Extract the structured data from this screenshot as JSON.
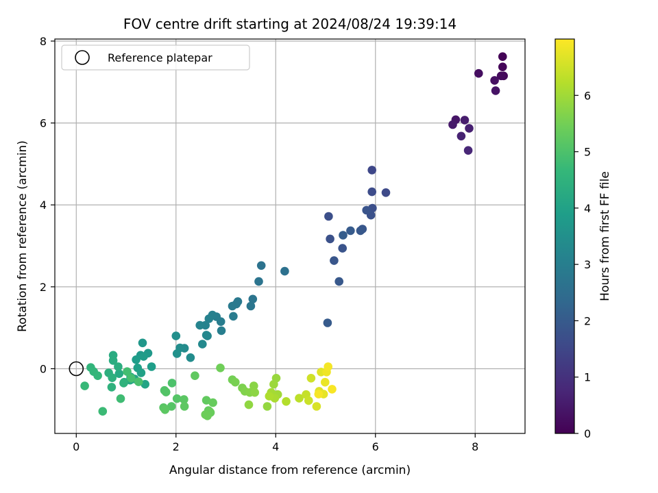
{
  "chart_data": {
    "type": "scatter",
    "title": "FOV centre drift starting at 2024/08/24 19:39:14",
    "xlabel": "Angular distance from reference (arcmin)",
    "ylabel": "Rotation from reference (arcmin)",
    "xlim": [
      -0.43,
      9.0
    ],
    "ylim": [
      -1.58,
      8.05
    ],
    "xticks": [
      0,
      2,
      4,
      6,
      8
    ],
    "yticks": [
      0,
      2,
      4,
      6,
      8
    ],
    "grid": true,
    "legend": {
      "position": "top-left",
      "label": "Reference platepar"
    },
    "reference_point": {
      "x": 0,
      "y": 0
    },
    "colorbar": {
      "label": "Hours from first FF file",
      "range": [
        0,
        7.0
      ],
      "ticks": [
        0,
        1,
        2,
        3,
        4,
        5,
        6
      ],
      "colormap": "viridis",
      "colors": [
        "#440154",
        "#482878",
        "#3e4989",
        "#31688e",
        "#26828e",
        "#1f9e89",
        "#35b779",
        "#6ece58",
        "#b5de2b",
        "#fde725"
      ]
    },
    "series": [
      {
        "x": [
          8.55,
          8.55,
          8.57,
          8.52,
          8.07,
          8.39,
          8.41,
          7.61,
          7.55,
          7.79,
          7.88,
          7.72,
          7.86,
          5.93,
          6.21,
          5.93,
          5.94,
          5.91,
          5.82,
          5.74,
          5.7,
          5.5,
          5.35,
          5.06,
          5.09,
          5.34,
          5.17,
          5.27,
          5.04,
          4.18,
          3.71,
          3.66,
          3.54,
          3.5,
          3.24,
          3.21,
          3.13,
          3.15,
          2.9,
          2.81,
          2.73,
          2.66,
          2.59,
          2.48,
          2.63,
          2.61,
          2.53,
          2.91,
          2.17,
          2.08,
          2.0,
          2.02,
          2.29,
          1.33,
          1.44,
          1.29,
          1.35,
          1.2,
          1.51,
          1.23,
          1.3,
          1.17,
          1.38,
          1.09,
          1.08,
          0.96,
          0.86,
          0.74,
          0.74,
          0.84,
          0.65,
          0.72,
          0.71,
          0.95,
          0.29,
          0.35,
          0.43,
          0.17,
          0.53,
          0.89,
          1.02,
          1.1,
          1.25,
          1.92,
          1.77,
          1.8,
          2.02,
          1.91,
          1.75,
          2.16,
          1.78,
          2.17,
          2.38,
          2.61,
          2.65,
          2.74,
          2.69,
          2.68,
          2.63,
          2.59,
          2.89,
          3.13,
          3.19,
          3.33,
          3.38,
          3.48,
          3.56,
          3.58,
          3.46,
          3.83,
          4.01,
          3.96,
          4.04,
          3.91,
          3.98,
          3.87,
          4.21,
          4.47,
          4.61,
          4.66,
          4.71,
          4.82,
          4.87,
          4.91,
          4.96,
          4.99,
          5.02,
          5.05,
          5.13,
          4.86
        ],
        "y": [
          7.62,
          7.37,
          7.15,
          7.15,
          7.21,
          7.04,
          6.79,
          6.08,
          5.96,
          6.07,
          5.87,
          5.68,
          5.33,
          4.85,
          4.3,
          4.32,
          3.92,
          3.75,
          3.87,
          3.41,
          3.37,
          3.37,
          3.26,
          3.72,
          3.17,
          2.94,
          2.64,
          2.13,
          1.12,
          2.38,
          2.52,
          2.13,
          1.7,
          1.53,
          1.64,
          1.58,
          1.53,
          1.28,
          1.15,
          1.27,
          1.31,
          1.22,
          1.06,
          1.06,
          0.8,
          0.82,
          0.6,
          0.93,
          0.5,
          0.51,
          0.8,
          0.37,
          0.27,
          0.63,
          0.38,
          0.33,
          0.3,
          0.22,
          0.05,
          0.02,
          -0.1,
          -0.25,
          -0.38,
          -0.2,
          -0.28,
          -0.33,
          -0.12,
          0.33,
          0.2,
          0.05,
          -0.1,
          -0.22,
          -0.45,
          -0.35,
          0.03,
          -0.07,
          -0.17,
          -0.42,
          -1.04,
          -0.73,
          -0.07,
          -0.23,
          -0.32,
          -0.35,
          -0.53,
          -0.57,
          -0.73,
          -0.92,
          -0.95,
          -0.75,
          -1.0,
          -0.92,
          -0.17,
          -0.77,
          -1.02,
          -0.83,
          -1.07,
          -1.05,
          -1.15,
          -1.12,
          0.02,
          -0.27,
          -0.33,
          -0.47,
          -0.55,
          -0.58,
          -0.42,
          -0.58,
          -0.88,
          -0.92,
          -0.23,
          -0.38,
          -0.63,
          -0.58,
          -0.72,
          -0.67,
          -0.8,
          -0.72,
          -0.63,
          -0.78,
          -0.23,
          -0.92,
          -0.55,
          -0.08,
          -0.62,
          -0.33,
          -0.08,
          0.05,
          -0.5,
          -0.62
        ],
        "hours": [
          0.05,
          0.1,
          0.14,
          0.2,
          0.25,
          0.3,
          0.36,
          0.42,
          0.48,
          0.55,
          0.62,
          0.68,
          0.75,
          1.52,
          1.58,
          1.64,
          1.7,
          1.76,
          1.82,
          1.88,
          1.94,
          2.0,
          2.06,
          1.7,
          1.76,
          1.82,
          1.88,
          1.94,
          2.0,
          2.6,
          2.65,
          2.68,
          2.72,
          2.76,
          2.8,
          2.84,
          2.88,
          2.92,
          2.96,
          3.0,
          3.04,
          3.08,
          3.12,
          3.16,
          3.2,
          3.24,
          3.3,
          3.0,
          3.36,
          3.42,
          3.48,
          3.52,
          3.4,
          3.7,
          3.74,
          3.78,
          3.82,
          3.86,
          3.9,
          3.94,
          3.98,
          4.02,
          4.06,
          4.1,
          4.14,
          4.18,
          4.22,
          4.28,
          4.32,
          4.36,
          4.4,
          4.44,
          4.48,
          4.52,
          4.56,
          4.6,
          4.64,
          4.7,
          4.75,
          4.8,
          4.86,
          4.9,
          4.95,
          5.0,
          5.05,
          5.08,
          5.1,
          5.12,
          5.15,
          5.18,
          5.2,
          5.22,
          5.25,
          5.28,
          5.3,
          5.33,
          5.36,
          5.38,
          5.4,
          5.42,
          5.45,
          5.5,
          5.55,
          5.6,
          5.65,
          5.7,
          5.75,
          5.78,
          5.82,
          5.86,
          5.9,
          5.95,
          6.0,
          6.05,
          6.1,
          6.15,
          6.2,
          6.3,
          6.4,
          6.45,
          6.5,
          6.6,
          6.65,
          6.7,
          6.75,
          6.8,
          6.85,
          6.9,
          6.95,
          6.92
        ]
      }
    ]
  }
}
